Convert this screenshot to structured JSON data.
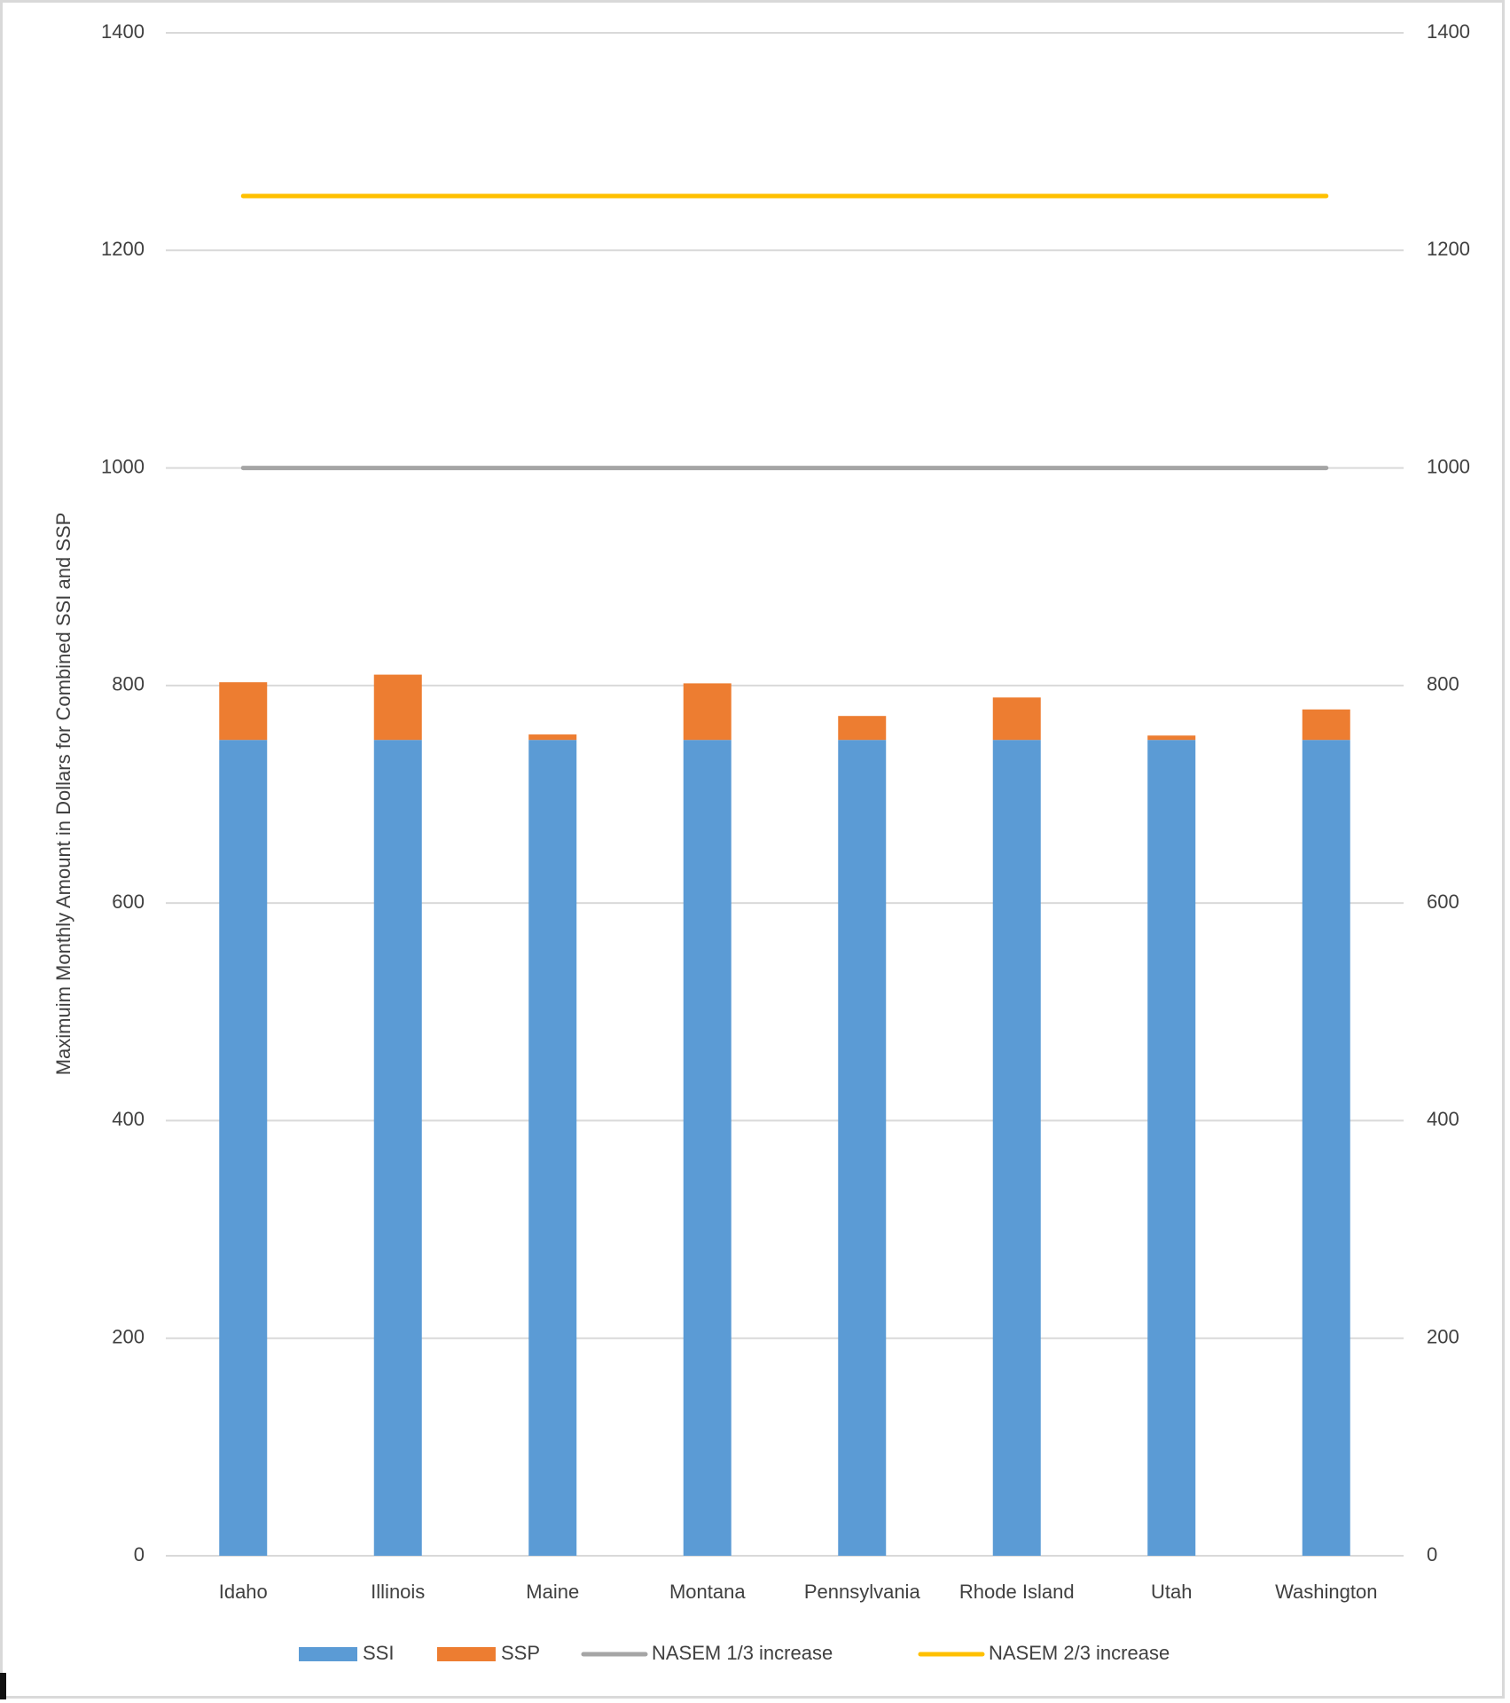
{
  "chart_data": {
    "type": "bar",
    "stacked": true,
    "title": "",
    "xlabel": "",
    "ylabel": "Maximuim Monthly Amount in Dollars for Combined SSI and SSP",
    "ylim": [
      0,
      1400
    ],
    "y_ticks": [
      0,
      200,
      400,
      600,
      800,
      1000,
      1200,
      1400
    ],
    "y_tick_labels": [
      "0",
      "200",
      "400",
      "600",
      "800",
      "1000",
      "1200",
      "1400"
    ],
    "secondary_ylim": [
      0,
      1400
    ],
    "secondary_y_tick_labels": [
      "0",
      "200",
      "400",
      "600",
      "800",
      "1000",
      "1200",
      "1400"
    ],
    "grid": true,
    "legend_position": "bottom",
    "categories": [
      "Idaho",
      "Illinois",
      "Maine",
      "Montana",
      "Pennsylvania",
      "Rhode Island",
      "Utah",
      "Washington"
    ],
    "series": [
      {
        "name": "SSI",
        "kind": "bar",
        "color": "#5b9bd5",
        "values": [
          750,
          750,
          750,
          750,
          750,
          750,
          750,
          750
        ]
      },
      {
        "name": "SSP",
        "kind": "bar",
        "color": "#ed7d31",
        "values": [
          53,
          60,
          5,
          52,
          22,
          39,
          4,
          28
        ]
      },
      {
        "name": "NASEM 1/3 increase",
        "kind": "line",
        "color": "#a5a5a5",
        "values": [
          1000,
          1000,
          1000,
          1000,
          1000,
          1000,
          1000,
          1000
        ]
      },
      {
        "name": "NASEM 2/3 increase",
        "kind": "line",
        "color": "#ffc000",
        "values": [
          1250,
          1250,
          1250,
          1250,
          1250,
          1250,
          1250,
          1250
        ]
      }
    ],
    "colors": {
      "gridline": "#d9d9d9",
      "text": "#404040"
    }
  }
}
